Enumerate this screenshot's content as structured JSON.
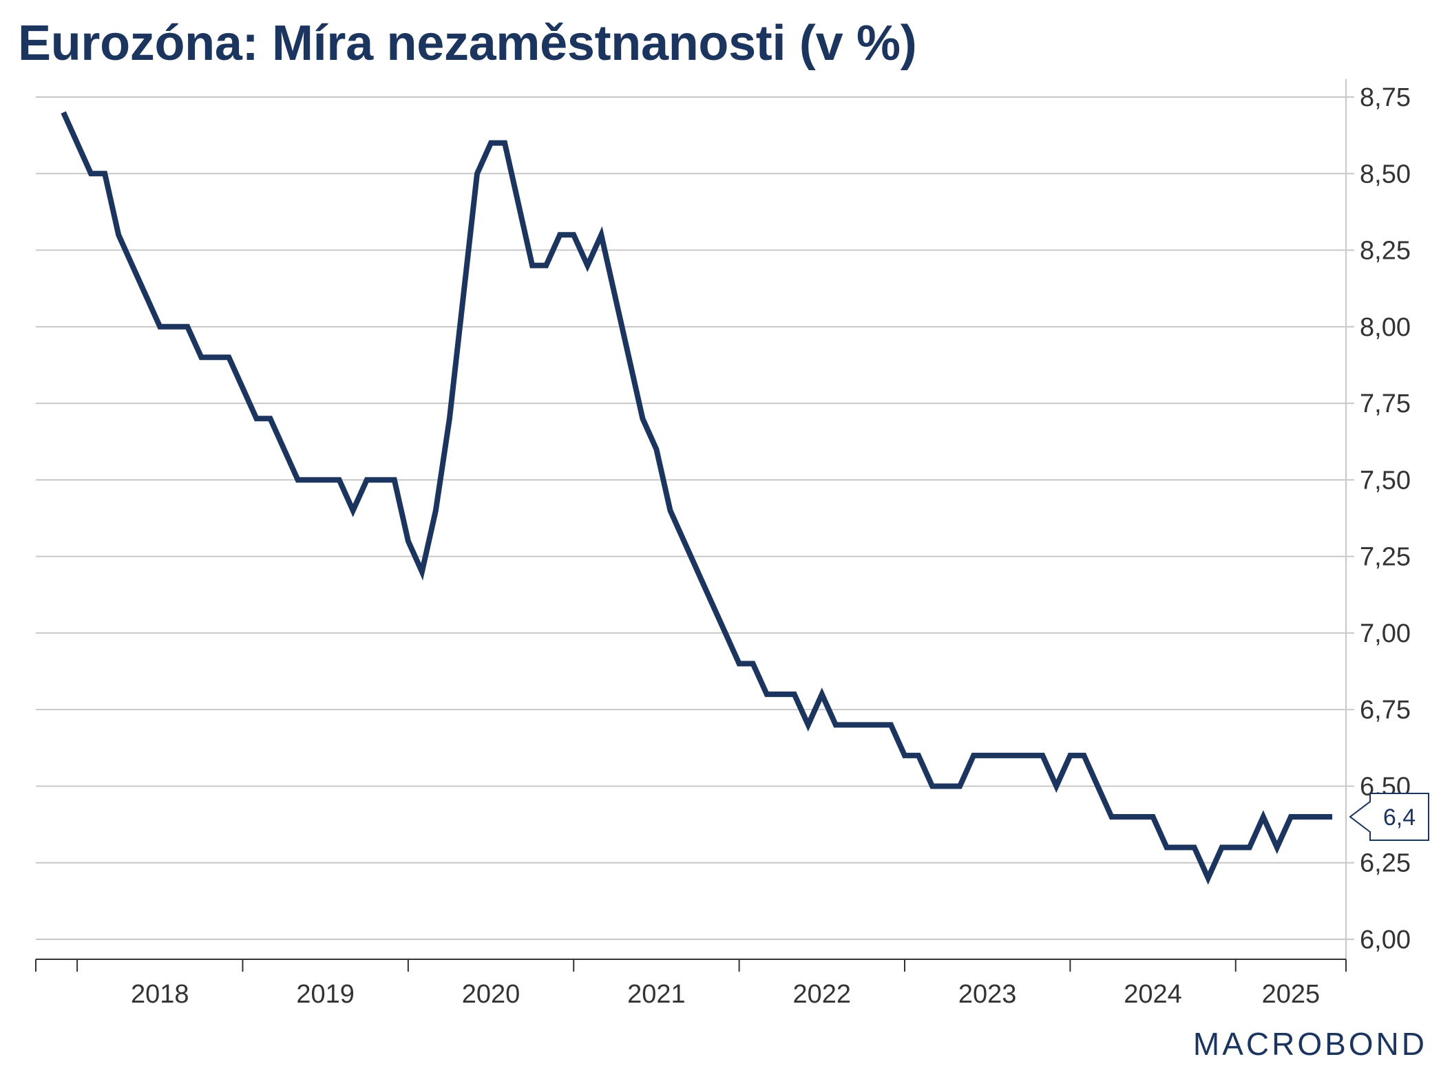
{
  "title": "Eurozóna: Míra nezaměstnanosti (v %)",
  "logo": "MACROBOND",
  "colors": {
    "line": "#1c355e",
    "grid": "#c8c8c8",
    "axis": "#333333"
  },
  "chart_data": {
    "type": "line",
    "title": "Eurozóna: Míra nezaměstnanosti (v %)",
    "x_start": "2017-10",
    "x_end": "2025-09",
    "xticks": [
      "2018",
      "2019",
      "2020",
      "2021",
      "2022",
      "2023",
      "2024",
      "2025"
    ],
    "yticks": [
      "6,00",
      "6,25",
      "6,50",
      "6,75",
      "7,00",
      "7,25",
      "7,50",
      "7,75",
      "8,00",
      "8,25",
      "8,50",
      "8,75"
    ],
    "ylim": [
      6.0,
      8.8
    ],
    "y_axis_side": "right",
    "grid": true,
    "last_value_label": "6,4",
    "series": [
      {
        "x": [
          "2017-12",
          "2018-01",
          "2018-02",
          "2018-03",
          "2018-04",
          "2018-05",
          "2018-06",
          "2018-07",
          "2018-08",
          "2018-09",
          "2018-10",
          "2018-11",
          "2018-12",
          "2019-01",
          "2019-02",
          "2019-03",
          "2019-04",
          "2019-05",
          "2019-06",
          "2019-07",
          "2019-08",
          "2019-09",
          "2019-10",
          "2019-11",
          "2019-12",
          "2020-01",
          "2020-02",
          "2020-03",
          "2020-04",
          "2020-05",
          "2020-06",
          "2020-07",
          "2020-08",
          "2020-09",
          "2020-10",
          "2020-11",
          "2020-12",
          "2021-01",
          "2021-02",
          "2021-03",
          "2021-04",
          "2021-05",
          "2021-06",
          "2021-07",
          "2021-08",
          "2021-09",
          "2021-10",
          "2021-11",
          "2021-12",
          "2022-01",
          "2022-02",
          "2022-03",
          "2022-04",
          "2022-05",
          "2022-06",
          "2022-07",
          "2022-08",
          "2022-09",
          "2022-10",
          "2022-11",
          "2022-12",
          "2023-01",
          "2023-02",
          "2023-03",
          "2023-04",
          "2023-05",
          "2023-06",
          "2023-07",
          "2023-08",
          "2023-09",
          "2023-10",
          "2023-11",
          "2023-12",
          "2024-01",
          "2024-02",
          "2024-03",
          "2024-04",
          "2024-05",
          "2024-06",
          "2024-07",
          "2024-08",
          "2024-09",
          "2024-10",
          "2024-11",
          "2024-12",
          "2025-01",
          "2025-02",
          "2025-03",
          "2025-04",
          "2025-05",
          "2025-06",
          "2025-07",
          "2025-08"
        ],
        "values": [
          8.7,
          8.6,
          8.5,
          8.5,
          8.3,
          8.2,
          8.1,
          8.0,
          8.0,
          8.0,
          7.9,
          7.9,
          7.9,
          7.8,
          7.7,
          7.7,
          7.6,
          7.5,
          7.5,
          7.5,
          7.5,
          7.4,
          7.5,
          7.5,
          7.5,
          7.3,
          7.2,
          7.4,
          7.7,
          8.1,
          8.5,
          8.6,
          8.6,
          8.4,
          8.2,
          8.2,
          8.3,
          8.3,
          8.2,
          8.3,
          8.1,
          7.9,
          7.7,
          7.6,
          7.4,
          7.3,
          7.2,
          7.1,
          7.0,
          6.9,
          6.9,
          6.8,
          6.8,
          6.8,
          6.7,
          6.8,
          6.7,
          6.7,
          6.7,
          6.7,
          6.7,
          6.6,
          6.6,
          6.5,
          6.5,
          6.5,
          6.6,
          6.6,
          6.6,
          6.6,
          6.6,
          6.6,
          6.5,
          6.6,
          6.6,
          6.5,
          6.4,
          6.4,
          6.4,
          6.4,
          6.3,
          6.3,
          6.3,
          6.2,
          6.3,
          6.3,
          6.3,
          6.4,
          6.3,
          6.4,
          6.4,
          6.4,
          6.4
        ]
      }
    ]
  }
}
